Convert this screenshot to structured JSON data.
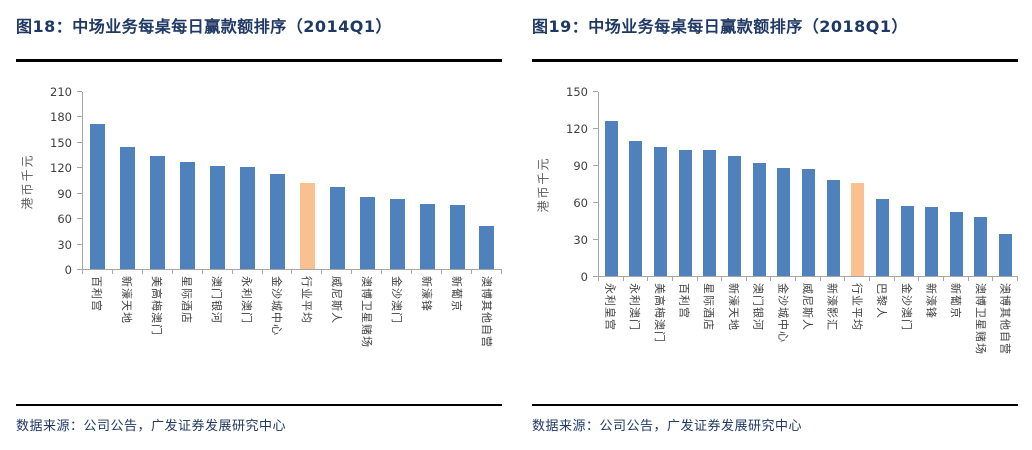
{
  "charts": [
    {
      "type": "bar",
      "title": "图18：中场业务每桌每日赢款额排序（2014Q1）",
      "ylabel": "港币千元",
      "xlabel": "",
      "ymax": 210,
      "ytick_step": 30,
      "yticks": [
        0,
        30,
        60,
        90,
        120,
        150,
        180,
        210
      ],
      "categories": [
        "百利宫",
        "新濠天地",
        "美高梅澳门",
        "星际酒店",
        "澳门银河",
        "永利澳门",
        "金沙城中心",
        "行业平均",
        "威尼斯人",
        "澳博卫星赌场",
        "金沙澳门",
        "新濠锋",
        "新葡京",
        "澳博其他自营"
      ],
      "values": [
        172,
        145,
        134,
        127,
        122,
        121,
        113,
        102,
        97,
        85,
        83,
        77,
        76,
        51
      ],
      "highlight_index": 7,
      "highlight_label": "行业平均",
      "bar_color": "#4F81BD",
      "highlight_color": "#FAC090",
      "legend": "none",
      "grid": "off",
      "source": "数据来源：公司公告，广发证券发展研究中心"
    },
    {
      "type": "bar",
      "title": "图19：中场业务每桌每日赢款额排序（2018Q1）",
      "ylabel": "港币千元",
      "xlabel": "",
      "ymax": 150,
      "ytick_step": 30,
      "yticks": [
        0,
        30,
        60,
        90,
        120,
        150
      ],
      "categories": [
        "永利皇宫",
        "永利澳门",
        "美高梅澳门",
        "百利宫",
        "星际酒店",
        "新濠天地",
        "澳门银河",
        "金沙城中心",
        "威尼斯人",
        "新濠影汇",
        "行业平均",
        "巴黎人",
        "金沙澳门",
        "新濠锋",
        "新葡京",
        "澳博卫星赌场",
        "澳博其他自营"
      ],
      "values": [
        126,
        110,
        105,
        103,
        103,
        98,
        92,
        88,
        87,
        78,
        76,
        63,
        57,
        56,
        52,
        48,
        34
      ],
      "highlight_index": 10,
      "highlight_label": "行业平均",
      "bar_color": "#4F81BD",
      "highlight_color": "#FAC090",
      "legend": "none",
      "grid": "off",
      "source": "数据来源：公司公告，广发证券发展研究中心"
    }
  ]
}
